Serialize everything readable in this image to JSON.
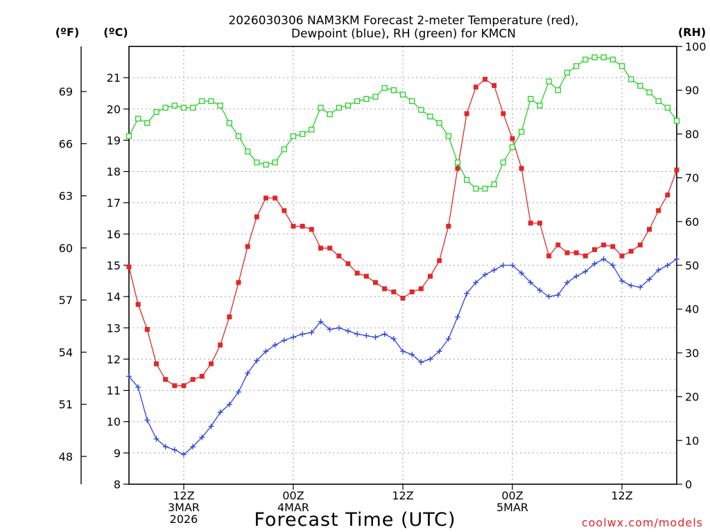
{
  "chart_data": {
    "type": "line",
    "title": [
      "2026030306 NAM3KM Forecast 2-meter Temperature (red),",
      "Dewpoint (blue), RH (green) for KMCN"
    ],
    "xlabel": "Forecast Time (UTC)",
    "credit": "coolwx.com/models",
    "units": {
      "fahrenheit": "(ºF)",
      "celsius": "(ºC)",
      "rh": "(RH)"
    },
    "x_start_hour": 6,
    "x_end_hour": 66,
    "x_ticks": [
      {
        "hour": 12,
        "lines": [
          "12Z",
          "3MAR",
          "2026"
        ]
      },
      {
        "hour": 24,
        "lines": [
          "00Z",
          "4MAR"
        ]
      },
      {
        "hour": 36,
        "lines": [
          "12Z"
        ]
      },
      {
        "hour": 48,
        "lines": [
          "00Z",
          "5MAR"
        ]
      },
      {
        "hour": 60,
        "lines": [
          "12Z"
        ]
      }
    ],
    "left_axis_c": {
      "min": 8,
      "max": 22,
      "ticks": [
        8,
        9,
        10,
        11,
        12,
        13,
        14,
        15,
        16,
        17,
        18,
        19,
        20,
        21
      ]
    },
    "left_axis_f": {
      "ticks": [
        48,
        51,
        54,
        57,
        60,
        63,
        66,
        69
      ]
    },
    "right_axis_rh": {
      "min": 0,
      "max": 100,
      "ticks": [
        0,
        10,
        20,
        30,
        40,
        50,
        60,
        70,
        80,
        90,
        100
      ]
    },
    "grid": true,
    "series": [
      {
        "name": "Temperature",
        "axis": "celsius",
        "color": "#e02828",
        "marker": "square-filled",
        "values": [
          14.95,
          13.75,
          12.95,
          11.85,
          11.35,
          11.15,
          11.15,
          11.35,
          11.45,
          11.85,
          12.45,
          13.35,
          14.45,
          15.6,
          16.55,
          17.15,
          17.15,
          16.75,
          16.25,
          16.25,
          16.15,
          15.55,
          15.55,
          15.3,
          15.05,
          14.75,
          14.65,
          14.45,
          14.25,
          14.15,
          13.95,
          14.15,
          14.25,
          14.65,
          15.15,
          16.25,
          18.1,
          19.85,
          20.7,
          20.95,
          20.75,
          19.85,
          19.05,
          18.1,
          16.35,
          16.35,
          15.3,
          15.65,
          15.4,
          15.4,
          15.3,
          15.5,
          15.65,
          15.6,
          15.3,
          15.45,
          15.65,
          16.15,
          16.75,
          17.25,
          18.05
        ]
      },
      {
        "name": "Dewpoint",
        "axis": "celsius",
        "color": "#2a40e0",
        "marker": "plus",
        "values": [
          11.45,
          11.1,
          10.05,
          9.45,
          9.2,
          9.1,
          8.95,
          9.2,
          9.5,
          9.85,
          10.3,
          10.55,
          10.95,
          11.55,
          11.95,
          12.25,
          12.45,
          12.6,
          12.7,
          12.8,
          12.85,
          13.2,
          12.95,
          13.0,
          12.9,
          12.8,
          12.75,
          12.7,
          12.8,
          12.65,
          12.25,
          12.15,
          11.9,
          12.0,
          12.25,
          12.65,
          13.35,
          14.1,
          14.45,
          14.7,
          14.85,
          15.0,
          15.0,
          14.75,
          14.45,
          14.2,
          14.0,
          14.05,
          14.45,
          14.65,
          14.8,
          15.05,
          15.2,
          15.0,
          14.5,
          14.35,
          14.3,
          14.55,
          14.85,
          15.0,
          15.2
        ]
      },
      {
        "name": "RH",
        "axis": "rh",
        "color": "#22d122",
        "marker": "square-open",
        "values": [
          79.5,
          83.5,
          82.5,
          85,
          86,
          86.5,
          86,
          86,
          87.5,
          87.5,
          86.5,
          82.5,
          79.5,
          76,
          73.5,
          73,
          73.5,
          76.5,
          79.5,
          80,
          81,
          86,
          84.5,
          86,
          86.5,
          87.5,
          88,
          88.5,
          90.5,
          90,
          89,
          87.5,
          85.5,
          84,
          82.5,
          79.5,
          73.5,
          69.5,
          67.5,
          67.5,
          68.5,
          73.5,
          77,
          80.5,
          88,
          86.5,
          92,
          90,
          94,
          95.5,
          97,
          97.5,
          97.5,
          97,
          95.5,
          92.5,
          91,
          89.5,
          87.5,
          86,
          83
        ]
      }
    ]
  }
}
